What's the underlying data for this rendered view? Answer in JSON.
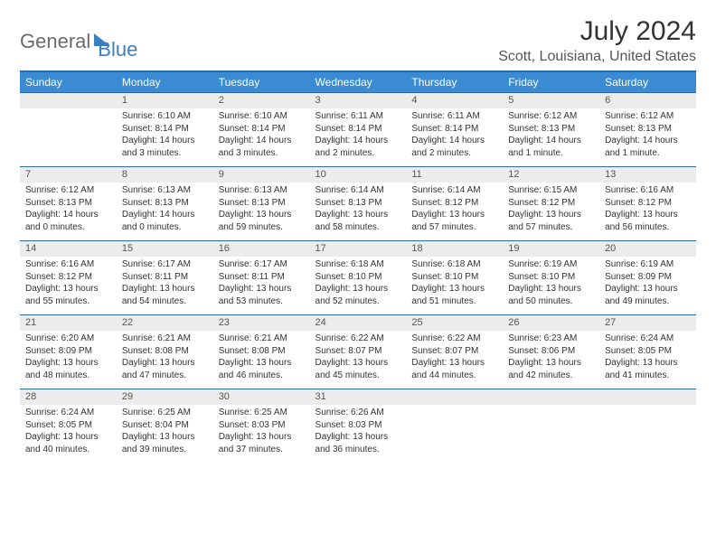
{
  "logo": {
    "text_gray": "General",
    "text_blue": "Blue"
  },
  "title": "July 2024",
  "location": "Scott, Louisiana, United States",
  "dow": [
    "Sunday",
    "Monday",
    "Tuesday",
    "Wednesday",
    "Thursday",
    "Friday",
    "Saturday"
  ],
  "colors": {
    "header_blue": "#3b8bd4",
    "rule_blue": "#2f6aa8",
    "daynum_bg": "#ececec",
    "logo_gray": "#6b6b6b",
    "logo_blue": "#3b7fc4",
    "text": "#333333"
  },
  "weeks": [
    [
      {
        "num": "",
        "lines": []
      },
      {
        "num": "1",
        "lines": [
          "Sunrise: 6:10 AM",
          "Sunset: 8:14 PM",
          "Daylight: 14 hours and 3 minutes."
        ]
      },
      {
        "num": "2",
        "lines": [
          "Sunrise: 6:10 AM",
          "Sunset: 8:14 PM",
          "Daylight: 14 hours and 3 minutes."
        ]
      },
      {
        "num": "3",
        "lines": [
          "Sunrise: 6:11 AM",
          "Sunset: 8:14 PM",
          "Daylight: 14 hours and 2 minutes."
        ]
      },
      {
        "num": "4",
        "lines": [
          "Sunrise: 6:11 AM",
          "Sunset: 8:14 PM",
          "Daylight: 14 hours and 2 minutes."
        ]
      },
      {
        "num": "5",
        "lines": [
          "Sunrise: 6:12 AM",
          "Sunset: 8:13 PM",
          "Daylight: 14 hours and 1 minute."
        ]
      },
      {
        "num": "6",
        "lines": [
          "Sunrise: 6:12 AM",
          "Sunset: 8:13 PM",
          "Daylight: 14 hours and 1 minute."
        ]
      }
    ],
    [
      {
        "num": "7",
        "lines": [
          "Sunrise: 6:12 AM",
          "Sunset: 8:13 PM",
          "Daylight: 14 hours and 0 minutes."
        ]
      },
      {
        "num": "8",
        "lines": [
          "Sunrise: 6:13 AM",
          "Sunset: 8:13 PM",
          "Daylight: 14 hours and 0 minutes."
        ]
      },
      {
        "num": "9",
        "lines": [
          "Sunrise: 6:13 AM",
          "Sunset: 8:13 PM",
          "Daylight: 13 hours and 59 minutes."
        ]
      },
      {
        "num": "10",
        "lines": [
          "Sunrise: 6:14 AM",
          "Sunset: 8:13 PM",
          "Daylight: 13 hours and 58 minutes."
        ]
      },
      {
        "num": "11",
        "lines": [
          "Sunrise: 6:14 AM",
          "Sunset: 8:12 PM",
          "Daylight: 13 hours and 57 minutes."
        ]
      },
      {
        "num": "12",
        "lines": [
          "Sunrise: 6:15 AM",
          "Sunset: 8:12 PM",
          "Daylight: 13 hours and 57 minutes."
        ]
      },
      {
        "num": "13",
        "lines": [
          "Sunrise: 6:16 AM",
          "Sunset: 8:12 PM",
          "Daylight: 13 hours and 56 minutes."
        ]
      }
    ],
    [
      {
        "num": "14",
        "lines": [
          "Sunrise: 6:16 AM",
          "Sunset: 8:12 PM",
          "Daylight: 13 hours and 55 minutes."
        ]
      },
      {
        "num": "15",
        "lines": [
          "Sunrise: 6:17 AM",
          "Sunset: 8:11 PM",
          "Daylight: 13 hours and 54 minutes."
        ]
      },
      {
        "num": "16",
        "lines": [
          "Sunrise: 6:17 AM",
          "Sunset: 8:11 PM",
          "Daylight: 13 hours and 53 minutes."
        ]
      },
      {
        "num": "17",
        "lines": [
          "Sunrise: 6:18 AM",
          "Sunset: 8:10 PM",
          "Daylight: 13 hours and 52 minutes."
        ]
      },
      {
        "num": "18",
        "lines": [
          "Sunrise: 6:18 AM",
          "Sunset: 8:10 PM",
          "Daylight: 13 hours and 51 minutes."
        ]
      },
      {
        "num": "19",
        "lines": [
          "Sunrise: 6:19 AM",
          "Sunset: 8:10 PM",
          "Daylight: 13 hours and 50 minutes."
        ]
      },
      {
        "num": "20",
        "lines": [
          "Sunrise: 6:19 AM",
          "Sunset: 8:09 PM",
          "Daylight: 13 hours and 49 minutes."
        ]
      }
    ],
    [
      {
        "num": "21",
        "lines": [
          "Sunrise: 6:20 AM",
          "Sunset: 8:09 PM",
          "Daylight: 13 hours and 48 minutes."
        ]
      },
      {
        "num": "22",
        "lines": [
          "Sunrise: 6:21 AM",
          "Sunset: 8:08 PM",
          "Daylight: 13 hours and 47 minutes."
        ]
      },
      {
        "num": "23",
        "lines": [
          "Sunrise: 6:21 AM",
          "Sunset: 8:08 PM",
          "Daylight: 13 hours and 46 minutes."
        ]
      },
      {
        "num": "24",
        "lines": [
          "Sunrise: 6:22 AM",
          "Sunset: 8:07 PM",
          "Daylight: 13 hours and 45 minutes."
        ]
      },
      {
        "num": "25",
        "lines": [
          "Sunrise: 6:22 AM",
          "Sunset: 8:07 PM",
          "Daylight: 13 hours and 44 minutes."
        ]
      },
      {
        "num": "26",
        "lines": [
          "Sunrise: 6:23 AM",
          "Sunset: 8:06 PM",
          "Daylight: 13 hours and 42 minutes."
        ]
      },
      {
        "num": "27",
        "lines": [
          "Sunrise: 6:24 AM",
          "Sunset: 8:05 PM",
          "Daylight: 13 hours and 41 minutes."
        ]
      }
    ],
    [
      {
        "num": "28",
        "lines": [
          "Sunrise: 6:24 AM",
          "Sunset: 8:05 PM",
          "Daylight: 13 hours and 40 minutes."
        ]
      },
      {
        "num": "29",
        "lines": [
          "Sunrise: 6:25 AM",
          "Sunset: 8:04 PM",
          "Daylight: 13 hours and 39 minutes."
        ]
      },
      {
        "num": "30",
        "lines": [
          "Sunrise: 6:25 AM",
          "Sunset: 8:03 PM",
          "Daylight: 13 hours and 37 minutes."
        ]
      },
      {
        "num": "31",
        "lines": [
          "Sunrise: 6:26 AM",
          "Sunset: 8:03 PM",
          "Daylight: 13 hours and 36 minutes."
        ]
      },
      {
        "num": "",
        "lines": []
      },
      {
        "num": "",
        "lines": []
      },
      {
        "num": "",
        "lines": []
      }
    ]
  ]
}
